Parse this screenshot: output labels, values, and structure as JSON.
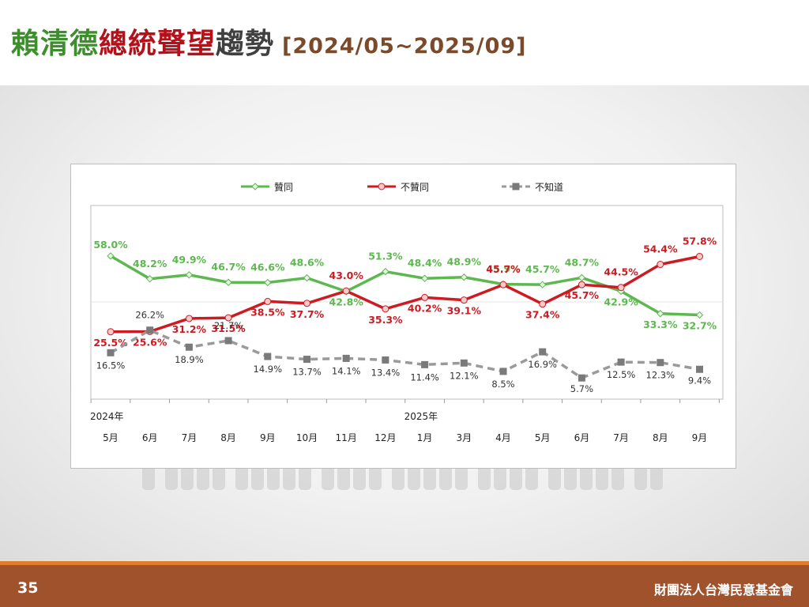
{
  "header": {
    "title_parts": [
      {
        "text": "賴清德",
        "color": "#3e8e2e"
      },
      {
        "text": "總統聲望",
        "color": "#b3121b"
      },
      {
        "text": "趨勢",
        "color": "#404040"
      }
    ],
    "date_range": "[2024/05~2025/09]"
  },
  "footer": {
    "page_number": "35",
    "organization": "財團法人台灣民意基金會"
  },
  "chart_data": {
    "type": "line",
    "categories": [
      "5月",
      "6月",
      "7月",
      "8月",
      "9月",
      "10月",
      "11月",
      "12月",
      "1月",
      "3月",
      "4月",
      "5月",
      "6月",
      "7月",
      "8月",
      "9月"
    ],
    "year_labels": [
      {
        "index": 0,
        "text": "2024年"
      },
      {
        "index": 8,
        "text": "2025年"
      }
    ],
    "series": [
      {
        "name": "贊同",
        "color": "#5cb84f",
        "marker": "diamond",
        "dashed": false,
        "values": [
          58.0,
          48.2,
          49.9,
          46.7,
          46.6,
          48.6,
          42.8,
          51.3,
          48.4,
          48.9,
          45.9,
          45.7,
          48.7,
          42.9,
          33.3,
          32.7
        ],
        "labels": [
          "58.0%",
          "48.2%",
          "49.9%",
          "46.7%",
          "46.6%",
          "48.6%",
          "42.8%",
          "51.3%",
          "48.4%",
          "48.9%",
          "45.9%",
          "45.7%",
          "48.7%",
          "42.9%",
          "33.3%",
          "32.7%"
        ]
      },
      {
        "name": "不贊同",
        "color": "#cc1b22",
        "marker": "circle",
        "dashed": false,
        "values": [
          25.5,
          25.6,
          31.2,
          31.5,
          38.5,
          37.7,
          43.0,
          35.3,
          40.2,
          39.1,
          45.7,
          37.4,
          45.7,
          44.5,
          54.4,
          57.8
        ],
        "labels": [
          "25.5%",
          "25.6%",
          "31.2%",
          "31.5%",
          "38.5%",
          "37.7%",
          "43.0%",
          "35.3%",
          "40.2%",
          "39.1%",
          "45.7%",
          "37.4%",
          "45.7%",
          "44.5%",
          "54.4%",
          "57.8%"
        ]
      },
      {
        "name": "不知道",
        "color": "#9a9a9a",
        "marker": "square",
        "dashed": true,
        "values": [
          16.5,
          26.2,
          18.9,
          21.7,
          14.9,
          13.7,
          14.1,
          13.4,
          11.4,
          12.1,
          8.5,
          16.9,
          5.7,
          12.5,
          12.3,
          9.4
        ],
        "labels": [
          "16.5%",
          "26.2%",
          "18.9%",
          "21.7%",
          "14.9%",
          "13.7%",
          "14.1%",
          "13.4%",
          "11.4%",
          "12.1%",
          "8.5%",
          "16.9%",
          "5.7%",
          "12.5%",
          "12.3%",
          "9.4%"
        ]
      }
    ],
    "legend_position": "top-center",
    "grid": false
  }
}
